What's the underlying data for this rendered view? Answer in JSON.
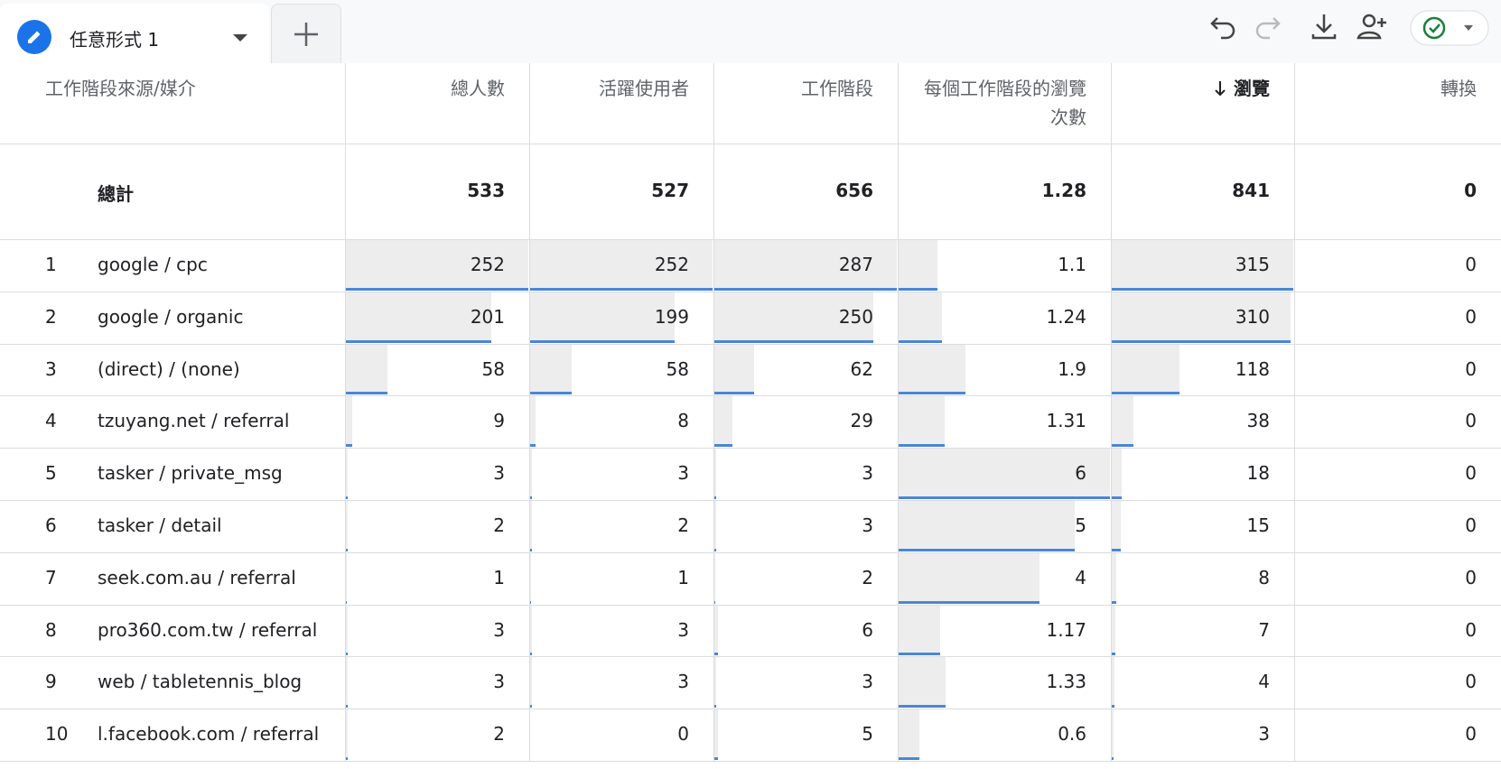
{
  "tab": {
    "title": "任意形式 1"
  },
  "table": {
    "headers": [
      "工作階段來源/媒介",
      "總人數",
      "活躍使用者",
      "工作階段",
      "每個工作階段的瀏覽次數",
      "瀏覽",
      "轉換"
    ],
    "total": {
      "label": "總計",
      "values": [
        533,
        527,
        656,
        1.28,
        841,
        0
      ]
    },
    "rows": [
      {
        "index": 1,
        "label": "google / cpc",
        "values": [
          252,
          252,
          287,
          1.1,
          315,
          0
        ]
      },
      {
        "index": 2,
        "label": "google / organic",
        "values": [
          201,
          199,
          250,
          1.24,
          310,
          0
        ]
      },
      {
        "index": 3,
        "label": "(direct) / (none)",
        "values": [
          58,
          58,
          62,
          1.9,
          118,
          0
        ]
      },
      {
        "index": 4,
        "label": "tzuyang.net / referral",
        "values": [
          9,
          8,
          29,
          1.31,
          38,
          0
        ]
      },
      {
        "index": 5,
        "label": "tasker / private_msg",
        "values": [
          3,
          3,
          3,
          6,
          18,
          0
        ]
      },
      {
        "index": 6,
        "label": "tasker / detail",
        "values": [
          2,
          2,
          3,
          5,
          15,
          0
        ]
      },
      {
        "index": 7,
        "label": "seek.com.au / referral",
        "values": [
          1,
          1,
          2,
          4,
          8,
          0
        ]
      },
      {
        "index": 8,
        "label": "pro360.com.tw / referral",
        "values": [
          3,
          3,
          6,
          1.17,
          7,
          0
        ]
      },
      {
        "index": 9,
        "label": "web / tabletennis_blog",
        "values": [
          3,
          3,
          3,
          1.33,
          4,
          0
        ]
      },
      {
        "index": 10,
        "label": "l.facebook.com / referral",
        "values": [
          2,
          0,
          5,
          0.6,
          3,
          0
        ]
      }
    ]
  }
}
